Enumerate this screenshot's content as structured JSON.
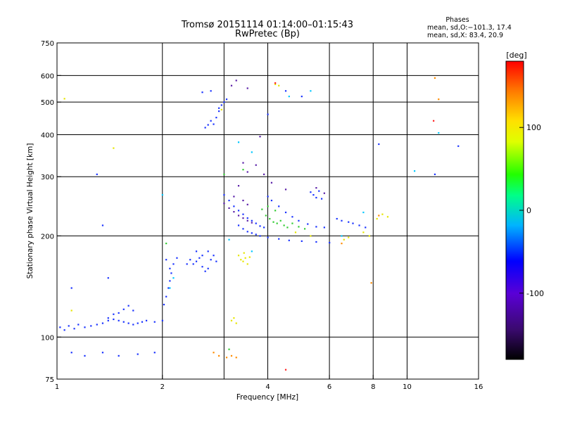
{
  "chart_data": {
    "type": "scatter",
    "title": "Tromsø 20151114 01:14:00–01:15:43",
    "subtitle": "RwPretec (Bp)",
    "xlabel": "Frequency [MHz]",
    "ylabel": "Stationary phase Virtual Height [km]",
    "x_scale": "log",
    "y_scale": "log",
    "xlim": [
      1,
      16
    ],
    "ylim": [
      75,
      750
    ],
    "x_ticks": [
      1,
      2,
      4,
      6,
      8,
      10,
      16
    ],
    "y_ticks": [
      75,
      100,
      200,
      300,
      400,
      500,
      600,
      750
    ],
    "x_gridlines": [
      2,
      3,
      4,
      6,
      8,
      10
    ],
    "y_gridlines": [
      100,
      200,
      300,
      400,
      500,
      600
    ],
    "grid": true,
    "phases": {
      "heading": "Phases",
      "line_o": "mean, sd,O:−101.3, 17.4",
      "line_x": "mean, sd,X:  83.4, 20.9"
    },
    "colorbar": {
      "label": "[deg]",
      "ticks": [
        100,
        0,
        -100
      ],
      "range": [
        -180,
        180
      ],
      "colormap": "rainbow",
      "placement": "right"
    },
    "series": [
      {
        "color_group": "blue",
        "color": "#1a33ff",
        "points": [
          [
            1.02,
            107
          ],
          [
            1.05,
            105
          ],
          [
            1.08,
            108
          ],
          [
            1.12,
            106
          ],
          [
            1.15,
            109
          ],
          [
            1.2,
            107
          ],
          [
            1.25,
            108
          ],
          [
            1.3,
            109
          ],
          [
            1.35,
            110
          ],
          [
            1.4,
            112
          ],
          [
            1.45,
            113
          ],
          [
            1.5,
            112
          ],
          [
            1.55,
            111
          ],
          [
            1.6,
            110
          ],
          [
            1.65,
            109
          ],
          [
            1.7,
            110
          ],
          [
            1.75,
            111
          ],
          [
            1.8,
            112
          ],
          [
            1.9,
            111
          ],
          [
            2.0,
            112
          ],
          [
            1.5,
            118
          ],
          [
            1.55,
            121
          ],
          [
            1.6,
            124
          ],
          [
            1.65,
            120
          ],
          [
            1.45,
            117
          ],
          [
            1.4,
            114
          ],
          [
            2.02,
            125
          ],
          [
            2.05,
            132
          ],
          [
            2.08,
            140
          ],
          [
            2.1,
            147
          ],
          [
            2.12,
            155
          ],
          [
            2.15,
            165
          ],
          [
            2.2,
            172
          ],
          [
            2.05,
            170
          ],
          [
            2.1,
            160
          ],
          [
            2.35,
            165
          ],
          [
            2.4,
            170
          ],
          [
            2.45,
            165
          ],
          [
            2.5,
            168
          ],
          [
            2.55,
            172
          ],
          [
            2.6,
            162
          ],
          [
            2.65,
            157
          ],
          [
            2.7,
            160
          ],
          [
            2.75,
            170
          ],
          [
            2.8,
            175
          ],
          [
            2.85,
            168
          ],
          [
            2.6,
            175
          ],
          [
            2.5,
            180
          ],
          [
            2.7,
            180
          ],
          [
            2.65,
            420
          ],
          [
            2.7,
            428
          ],
          [
            2.75,
            440
          ],
          [
            2.8,
            430
          ],
          [
            2.85,
            450
          ],
          [
            2.9,
            470
          ],
          [
            2.95,
            490
          ],
          [
            3.0,
            500
          ],
          [
            3.05,
            510
          ],
          [
            2.9,
            480
          ],
          [
            2.6,
            535
          ],
          [
            2.75,
            540
          ],
          [
            3.0,
            265
          ],
          [
            3.1,
            255
          ],
          [
            3.2,
            245
          ],
          [
            3.3,
            238
          ],
          [
            3.4,
            232
          ],
          [
            3.5,
            226
          ],
          [
            3.6,
            222
          ],
          [
            3.7,
            218
          ],
          [
            3.8,
            214
          ],
          [
            3.9,
            212
          ],
          [
            3.3,
            215
          ],
          [
            3.4,
            210
          ],
          [
            3.5,
            206
          ],
          [
            3.6,
            204
          ],
          [
            3.7,
            202
          ],
          [
            3.8,
            200
          ],
          [
            4.0,
            198
          ],
          [
            4.3,
            196
          ],
          [
            4.6,
            194
          ],
          [
            5.0,
            193
          ],
          [
            5.5,
            192
          ],
          [
            6.0,
            191
          ],
          [
            4.0,
            262
          ],
          [
            4.1,
            255
          ],
          [
            4.3,
            245
          ],
          [
            4.5,
            235
          ],
          [
            4.7,
            228
          ],
          [
            4.9,
            222
          ],
          [
            5.2,
            217
          ],
          [
            5.5,
            213
          ],
          [
            5.8,
            212
          ],
          [
            5.3,
            270
          ],
          [
            5.4,
            265
          ],
          [
            5.5,
            260
          ],
          [
            5.6,
            272
          ],
          [
            5.7,
            258
          ],
          [
            6.3,
            225
          ],
          [
            6.5,
            222
          ],
          [
            6.8,
            220
          ],
          [
            7.0,
            218
          ],
          [
            7.3,
            215
          ],
          [
            7.6,
            212
          ],
          [
            1.1,
            90
          ],
          [
            1.2,
            88
          ],
          [
            1.35,
            90
          ],
          [
            1.5,
            88
          ],
          [
            1.7,
            89
          ],
          [
            1.9,
            90
          ],
          [
            1.3,
            305
          ],
          [
            1.35,
            215
          ],
          [
            8.3,
            375
          ],
          [
            12.0,
            305
          ],
          [
            14.0,
            370
          ],
          [
            4.0,
            460
          ],
          [
            4.5,
            540
          ],
          [
            5.0,
            520
          ],
          [
            1.1,
            140
          ],
          [
            1.4,
            150
          ]
        ]
      },
      {
        "color_group": "purple",
        "color": "#5a1fa8",
        "points": [
          [
            3.0,
            250
          ],
          [
            3.1,
            242
          ],
          [
            3.2,
            236
          ],
          [
            3.3,
            230
          ],
          [
            3.4,
            226
          ],
          [
            3.5,
            222
          ],
          [
            3.6,
            219
          ],
          [
            3.2,
            262
          ],
          [
            3.4,
            255
          ],
          [
            3.5,
            248
          ],
          [
            3.3,
            282
          ],
          [
            3.4,
            330
          ],
          [
            3.5,
            310
          ],
          [
            3.7,
            325
          ],
          [
            3.9,
            305
          ],
          [
            4.1,
            288
          ],
          [
            4.5,
            275
          ],
          [
            3.25,
            580
          ],
          [
            3.15,
            560
          ],
          [
            3.5,
            550
          ],
          [
            5.5,
            278
          ],
          [
            5.8,
            268
          ],
          [
            3.8,
            395
          ]
        ]
      },
      {
        "color_group": "cyan",
        "color": "#00c8ff",
        "points": [
          [
            2.1,
            140
          ],
          [
            2.15,
            150
          ],
          [
            2.0,
            265
          ],
          [
            3.3,
            380
          ],
          [
            3.6,
            355
          ],
          [
            4.6,
            520
          ],
          [
            5.3,
            540
          ],
          [
            6.5,
            200
          ],
          [
            7.5,
            235
          ],
          [
            10.5,
            312
          ],
          [
            3.1,
            195
          ],
          [
            3.6,
            180
          ],
          [
            12.3,
            405
          ]
        ]
      },
      {
        "color_group": "green",
        "color": "#33cc33",
        "points": [
          [
            3.95,
            230
          ],
          [
            4.05,
            225
          ],
          [
            4.15,
            220
          ],
          [
            4.25,
            218
          ],
          [
            4.35,
            222
          ],
          [
            4.45,
            215
          ],
          [
            4.55,
            212
          ],
          [
            4.7,
            218
          ],
          [
            4.9,
            213
          ],
          [
            5.1,
            210
          ],
          [
            3.85,
            240
          ],
          [
            4.0,
            245
          ],
          [
            4.2,
            238
          ],
          [
            3.0,
            305
          ],
          [
            3.4,
            315
          ],
          [
            2.05,
            190
          ],
          [
            3.1,
            92
          ]
        ]
      },
      {
        "color_group": "yellow",
        "color": "#e6e600",
        "points": [
          [
            3.3,
            175
          ],
          [
            3.35,
            170
          ],
          [
            3.4,
            168
          ],
          [
            3.45,
            172
          ],
          [
            3.5,
            165
          ],
          [
            3.55,
            173
          ],
          [
            3.42,
            178
          ],
          [
            3.15,
            112
          ],
          [
            3.2,
            114
          ],
          [
            3.25,
            110
          ],
          [
            4.2,
            565
          ],
          [
            4.3,
            560
          ],
          [
            6.6,
            195
          ],
          [
            6.8,
            198
          ],
          [
            7.5,
            205
          ],
          [
            7.8,
            200
          ],
          [
            8.2,
            225
          ],
          [
            8.5,
            232
          ],
          [
            8.8,
            228
          ],
          [
            1.45,
            365
          ],
          [
            1.05,
            512
          ],
          [
            1.1,
            120
          ],
          [
            4.8,
            205
          ],
          [
            5.3,
            200
          ],
          [
            2.95,
            475
          ]
        ]
      },
      {
        "color_group": "orange",
        "color": "#ff8c00",
        "points": [
          [
            2.8,
            90
          ],
          [
            2.9,
            88
          ],
          [
            3.05,
            87
          ],
          [
            3.15,
            88
          ],
          [
            3.25,
            87
          ],
          [
            6.5,
            190
          ],
          [
            12.0,
            590
          ],
          [
            12.3,
            510
          ],
          [
            8.3,
            230
          ],
          [
            7.9,
            145
          ]
        ]
      },
      {
        "color_group": "red",
        "color": "#ff2020",
        "points": [
          [
            4.5,
            80
          ],
          [
            11.9,
            440
          ],
          [
            4.2,
            570
          ]
        ]
      }
    ]
  }
}
